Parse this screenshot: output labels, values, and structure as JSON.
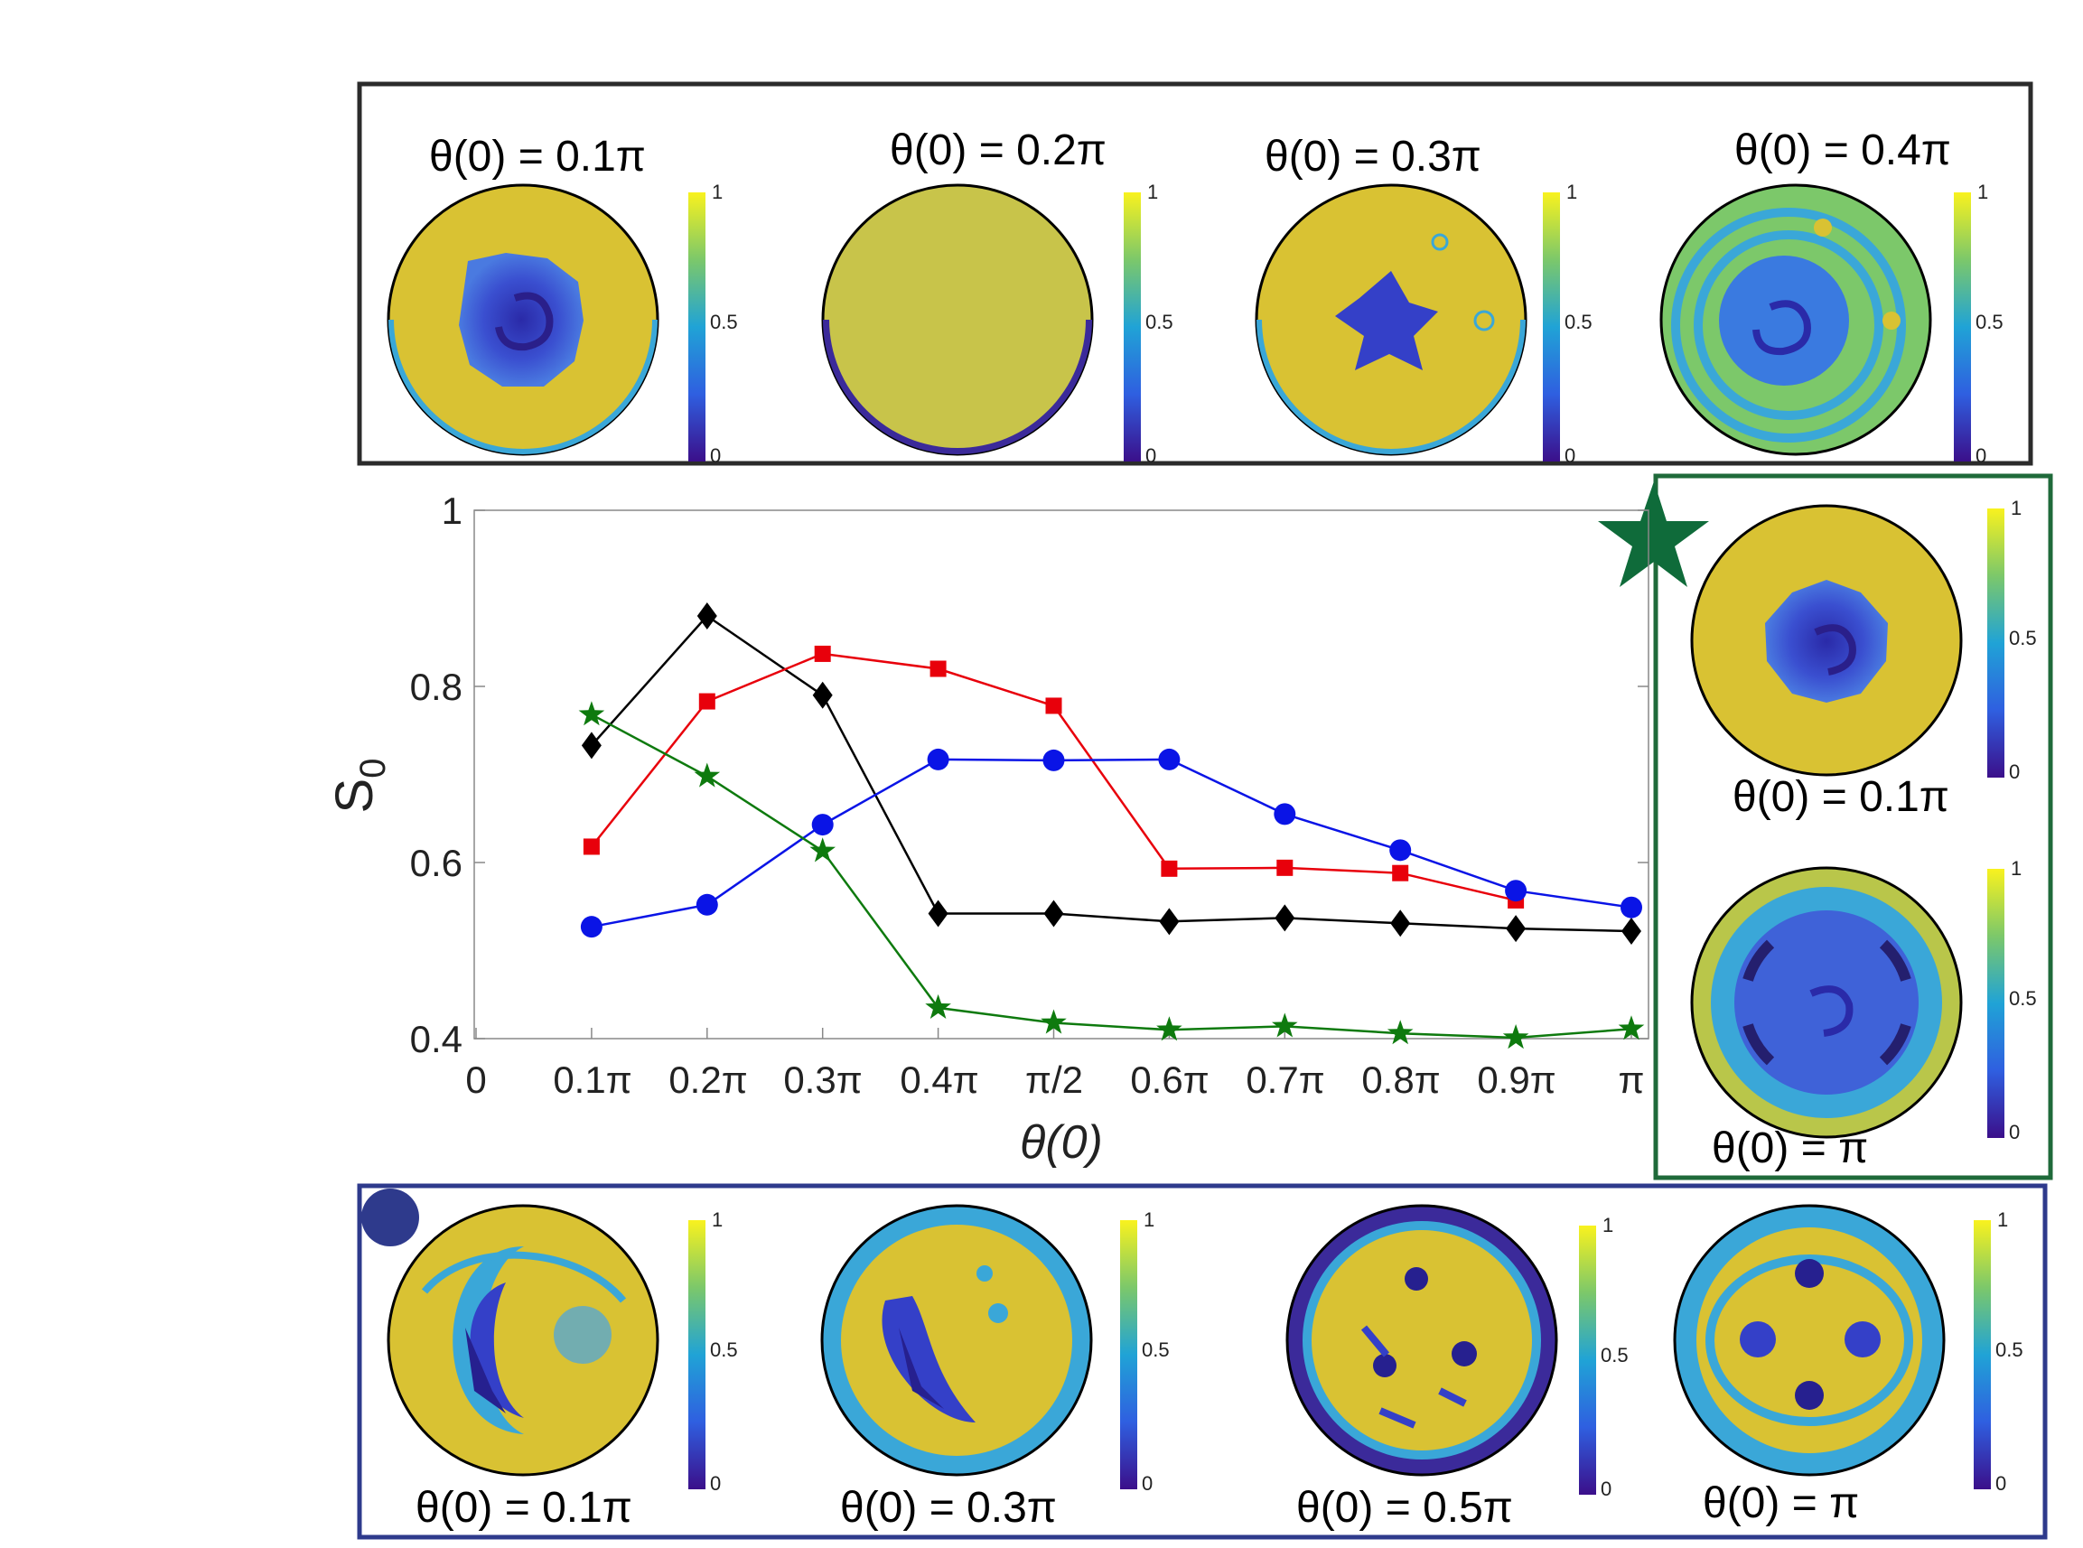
{
  "colors": {
    "black_series": "#000000",
    "red_series": "#e8000b",
    "blue_series": "#0a14e6",
    "green_series": "#0e7a0e",
    "top_panel_border": "#2b2b2b",
    "green_panel_border": "#1f6a3a",
    "blue_panel_border": "#2e3a8c",
    "star_marker": "#0f6b3a",
    "circle_marker": "#2e3a8c",
    "map_yellow": "#d9c233",
    "map_blue": "#3440c8",
    "map_deep": "#26208f",
    "map_cyan": "#3aa7d8"
  },
  "colorbar": {
    "top": "1",
    "mid": "0.5",
    "bottom": "0"
  },
  "panels": {
    "top": {
      "marker": "diamond",
      "labels": [
        "θ(0) = 0.1π",
        "θ(0) = 0.2π",
        "θ(0) = 0.3π",
        "θ(0) = 0.4π"
      ]
    },
    "right": {
      "marker": "star",
      "labels": [
        "θ(0) = 0.1π",
        "θ(0) = π"
      ]
    },
    "bottom": {
      "marker": "circle",
      "labels": [
        "θ(0) = 0.1π",
        "θ(0) = 0.3π",
        "θ(0) = 0.5π",
        "θ(0) = π"
      ]
    }
  },
  "chart_data": {
    "type": "line",
    "title": "",
    "xlabel": "θ(0)",
    "ylabel": "S0",
    "ylabel_main": "S",
    "ylabel_sub": "0",
    "xlim": [
      0,
      1
    ],
    "ylim": [
      0.4,
      1.0
    ],
    "x_ticks": [
      0,
      0.1,
      0.2,
      0.3,
      0.4,
      0.5,
      0.6,
      0.7,
      0.8,
      0.9,
      1.0
    ],
    "x_tick_labels": [
      "0",
      "0.1π",
      "0.2π",
      "0.3π",
      "0.4π",
      "π/2",
      "0.6π",
      "0.7π",
      "0.8π",
      "0.9π",
      "π"
    ],
    "y_ticks": [
      0.4,
      0.6,
      0.8,
      1.0
    ],
    "y_tick_labels": [
      "0.4",
      "0.6",
      "0.8",
      "1"
    ],
    "grid": false,
    "series": [
      {
        "name": "black-diamond",
        "marker": "diamond",
        "x": [
          0.1,
          0.2,
          0.3,
          0.4,
          0.5,
          0.6,
          0.7,
          0.8,
          0.9,
          1.0
        ],
        "values": [
          0.733,
          0.88,
          0.79,
          0.542,
          0.542,
          0.533,
          0.537,
          0.531,
          0.525,
          0.522
        ]
      },
      {
        "name": "red-square",
        "marker": "square",
        "x": [
          0.1,
          0.2,
          0.3,
          0.4,
          0.5,
          0.6,
          0.7,
          0.8,
          0.9
        ],
        "values": [
          0.618,
          0.783,
          0.837,
          0.82,
          0.778,
          0.593,
          0.594,
          0.588,
          0.557
        ]
      },
      {
        "name": "blue-circle",
        "marker": "circle",
        "x": [
          0.1,
          0.2,
          0.3,
          0.4,
          0.5,
          0.6,
          0.7,
          0.8,
          0.9,
          1.0
        ],
        "values": [
          0.527,
          0.552,
          0.643,
          0.717,
          0.716,
          0.717,
          0.655,
          0.614,
          0.568,
          0.549
        ]
      },
      {
        "name": "green-star",
        "marker": "star",
        "x": [
          0.1,
          0.2,
          0.3,
          0.4,
          0.5,
          0.6,
          0.7,
          0.8,
          0.9,
          1.0
        ],
        "values": [
          0.768,
          0.698,
          0.613,
          0.435,
          0.418,
          0.41,
          0.414,
          0.406,
          0.401,
          0.411
        ]
      }
    ]
  }
}
